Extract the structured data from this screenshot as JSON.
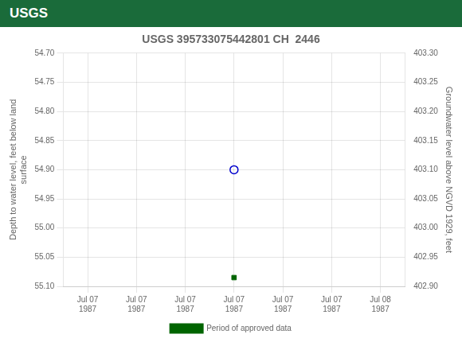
{
  "chart_data": {
    "type": "scatter",
    "title": "USGS 395733075442801 CH  2446",
    "annotations": [
      "USGS"
    ],
    "categories": [
      "Jul 07\n1987",
      "Jul 07\n1987",
      "Jul 07\n1987",
      "Jul 07\n1987",
      "Jul 07\n1987",
      "Jul 07\n1987",
      "Jul 08\n1987"
    ],
    "series": [
      {
        "values": [
          null,
          null,
          null,
          54.9,
          null,
          null,
          null
        ],
        "color": "#0000cc",
        "marker": "circle-open"
      },
      {
        "name": "Period of approved data",
        "values": [
          null,
          null,
          null,
          55.085,
          null,
          null,
          null
        ],
        "color": "#006400",
        "marker": "square"
      }
    ],
    "ylabel": "Depth to water level, feet below land\nsurface",
    "y2label": "Groundwater level above NGVD 1929, feet",
    "ylim": [
      55.1,
      54.7
    ],
    "yticks": [
      {
        "value": 54.7,
        "label": "54.70"
      },
      {
        "value": 54.75,
        "label": "54.75"
      },
      {
        "value": 54.8,
        "label": "54.80"
      },
      {
        "value": 54.85,
        "label": "54.85"
      },
      {
        "value": 54.9,
        "label": "54.90"
      },
      {
        "value": 54.95,
        "label": "54.95"
      },
      {
        "value": 55.0,
        "label": "55.00"
      },
      {
        "value": 55.05,
        "label": "55.05"
      },
      {
        "value": 55.1,
        "label": "55.10"
      }
    ],
    "y2lim": [
      402.9,
      403.3
    ],
    "y2ticks": [
      {
        "value": 403.3,
        "label": "403.30"
      },
      {
        "value": 403.25,
        "label": "403.25"
      },
      {
        "value": 403.2,
        "label": "403.20"
      },
      {
        "value": 403.15,
        "label": "403.15"
      },
      {
        "value": 403.1,
        "label": "403.10"
      },
      {
        "value": 403.05,
        "label": "403.05"
      },
      {
        "value": 403.0,
        "label": "403.00"
      },
      {
        "value": 402.95,
        "label": "402.95"
      },
      {
        "value": 402.9,
        "label": "402.90"
      }
    ],
    "grid": true,
    "legend": "bottom"
  }
}
